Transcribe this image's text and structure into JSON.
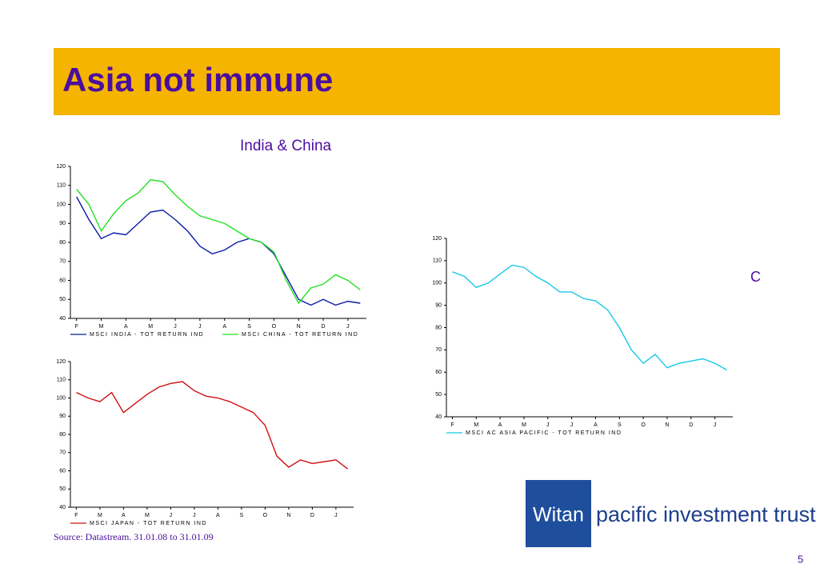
{
  "header": {
    "title": "Asia not immune"
  },
  "subtitle": "India & China",
  "hidden_label": "C",
  "chart_data": [
    {
      "type": "line",
      "categories": [
        "F",
        null,
        "M",
        null,
        "A",
        null,
        "M",
        null,
        "J",
        null,
        "J",
        null,
        "A",
        null,
        "S",
        null,
        "O",
        null,
        "N",
        null,
        "D",
        null,
        "J",
        null
      ],
      "series": [
        {
          "name": "MSCI INDIA - TOT RETURN IND",
          "color": "#0a1aa8",
          "values": [
            104,
            92,
            82,
            85,
            84,
            90,
            96,
            97,
            92,
            86,
            78,
            74,
            76,
            80,
            82,
            80,
            74,
            62,
            50,
            47,
            50,
            47,
            49,
            48
          ]
        },
        {
          "name": "MSCI CHINA - TOT RETURN IND",
          "color": "#22e022",
          "values": [
            108,
            100,
            86,
            95,
            102,
            106,
            113,
            112,
            105,
            99,
            94,
            92,
            90,
            86,
            82,
            80,
            75,
            60,
            48,
            56,
            58,
            63,
            60,
            55
          ]
        }
      ],
      "ylim": [
        40,
        120
      ],
      "yticks": [
        40,
        50,
        60,
        70,
        80,
        90,
        100,
        110,
        120
      ]
    },
    {
      "type": "line",
      "categories": [
        "F",
        null,
        "M",
        null,
        "A",
        null,
        "M",
        null,
        "J",
        null,
        "J",
        null,
        "A",
        null,
        "S",
        null,
        "O",
        null,
        "N",
        null,
        "D",
        null,
        "J",
        null
      ],
      "series": [
        {
          "name": "MSCI JAPAN - TOT RETURN IND",
          "color": "#d01010",
          "values": [
            103,
            100,
            98,
            103,
            92,
            97,
            102,
            106,
            108,
            109,
            104,
            101,
            100,
            98,
            95,
            92,
            85,
            68,
            62,
            66,
            64,
            65,
            66,
            61
          ]
        }
      ],
      "ylim": [
        40,
        120
      ],
      "yticks": [
        40,
        50,
        60,
        70,
        80,
        90,
        100,
        110,
        120
      ]
    },
    {
      "type": "line",
      "categories": [
        "F",
        null,
        "M",
        null,
        "A",
        null,
        "M",
        null,
        "J",
        null,
        "J",
        null,
        "A",
        null,
        "S",
        null,
        "O",
        null,
        "N",
        null,
        "D",
        null,
        "J",
        null
      ],
      "series": [
        {
          "name": "MSCI AC ASIA PACIFIC - TOT RETURN IND",
          "color": "#18c8e8",
          "values": [
            105,
            103,
            98,
            100,
            104,
            108,
            107,
            103,
            100,
            96,
            96,
            93,
            92,
            88,
            80,
            70,
            64,
            68,
            62,
            64,
            65,
            66,
            64,
            61
          ]
        }
      ],
      "ylim": [
        40,
        120
      ],
      "yticks": [
        40,
        50,
        60,
        70,
        80,
        90,
        100,
        110,
        120
      ]
    }
  ],
  "source": "Source: Datastream. 31.01.08 to 31.01.09",
  "logo": {
    "brand": "Witan",
    "tagline": "pacific investment trust"
  },
  "page_number": "5"
}
